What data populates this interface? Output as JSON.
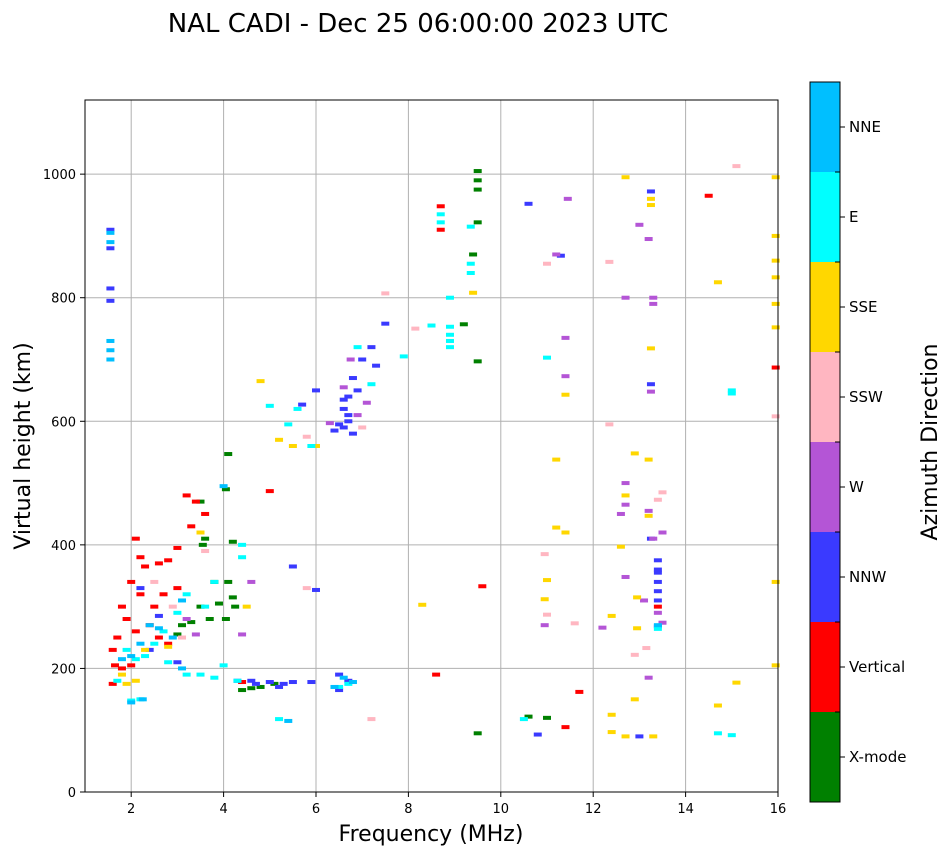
{
  "chart_data": {
    "type": "scatter",
    "title": "NAL CADI - Dec 25 06:00:00 2023 UTC",
    "xlabel": "Frequency (MHz)",
    "ylabel": "Virtual height (km)",
    "xlim": [
      1,
      16
    ],
    "ylim": [
      0,
      1120
    ],
    "xticks": [
      2,
      4,
      6,
      8,
      10,
      12,
      14,
      16
    ],
    "yticks": [
      0,
      200,
      400,
      600,
      800,
      1000
    ],
    "grid": true,
    "colorbar": {
      "title": "Azimuth Direction",
      "categories": [
        "X-mode",
        "Vertical",
        "NNW",
        "W",
        "SSW",
        "SSE",
        "E",
        "NNE"
      ],
      "colors": {
        "X-mode": "#008000",
        "Vertical": "#ff0000",
        "NNW": "#3a3aff",
        "W": "#b455d6",
        "SSW": "#ffb6c1",
        "SSE": "#ffd700",
        "E": "#00ffff",
        "NNE": "#00bfff"
      }
    },
    "series": [
      {
        "name": "X-mode",
        "points": [
          [
            9.5,
            1005
          ],
          [
            9.5,
            990
          ],
          [
            9.5,
            975
          ],
          [
            9.5,
            922
          ],
          [
            9.4,
            870
          ],
          [
            9.2,
            757
          ],
          [
            9.5,
            697
          ],
          [
            4.1,
            547
          ],
          [
            4.05,
            490
          ],
          [
            3.5,
            470
          ],
          [
            3.6,
            410
          ],
          [
            3.55,
            400
          ],
          [
            4.2,
            405
          ],
          [
            3.8,
            340
          ],
          [
            4.1,
            340
          ],
          [
            4.2,
            315
          ],
          [
            4.25,
            300
          ],
          [
            3.5,
            300
          ],
          [
            3.7,
            280
          ],
          [
            3.3,
            275
          ],
          [
            4.05,
            280
          ],
          [
            3.1,
            270
          ],
          [
            3.0,
            255
          ],
          [
            4.4,
            165
          ],
          [
            4.6,
            168
          ],
          [
            4.8,
            170
          ],
          [
            5.1,
            175
          ],
          [
            9.5,
            95
          ],
          [
            10.6,
            122
          ],
          [
            11.0,
            120
          ],
          [
            3.9,
            305
          ]
        ]
      },
      {
        "name": "Vertical",
        "points": [
          [
            8.7,
            948
          ],
          [
            8.7,
            910
          ],
          [
            14.5,
            965
          ],
          [
            15.95,
            687
          ],
          [
            13.4,
            300
          ],
          [
            9.6,
            333
          ],
          [
            8.6,
            190
          ],
          [
            11.7,
            162
          ],
          [
            11.4,
            105
          ],
          [
            2.1,
            410
          ],
          [
            2.2,
            380
          ],
          [
            2.3,
            365
          ],
          [
            2.6,
            370
          ],
          [
            2.8,
            375
          ],
          [
            3.0,
            395
          ],
          [
            3.2,
            480
          ],
          [
            3.4,
            470
          ],
          [
            2.0,
            340
          ],
          [
            2.2,
            320
          ],
          [
            2.5,
            300
          ],
          [
            2.7,
            320
          ],
          [
            3.0,
            330
          ],
          [
            1.8,
            300
          ],
          [
            1.9,
            280
          ],
          [
            2.1,
            260
          ],
          [
            2.4,
            270
          ],
          [
            2.6,
            250
          ],
          [
            2.8,
            240
          ],
          [
            1.7,
            250
          ],
          [
            1.6,
            230
          ],
          [
            1.65,
            205
          ],
          [
            1.8,
            200
          ],
          [
            2.0,
            205
          ],
          [
            3.6,
            450
          ],
          [
            3.3,
            430
          ],
          [
            1.6,
            175
          ],
          [
            5.0,
            487
          ],
          [
            4.4,
            178
          ]
        ]
      },
      {
        "name": "NNW",
        "points": [
          [
            1.55,
            910
          ],
          [
            1.55,
            880
          ],
          [
            1.55,
            815
          ],
          [
            1.55,
            795
          ],
          [
            10.6,
            952
          ],
          [
            11.3,
            868
          ],
          [
            13.25,
            972
          ],
          [
            13.25,
            660
          ],
          [
            13.25,
            410
          ],
          [
            13.4,
            375
          ],
          [
            13.4,
            355
          ],
          [
            13.4,
            340
          ],
          [
            13.4,
            325
          ],
          [
            13.4,
            310
          ],
          [
            13.4,
            268
          ],
          [
            13.0,
            90
          ],
          [
            10.8,
            93
          ],
          [
            6.6,
            635
          ],
          [
            6.6,
            620
          ],
          [
            6.7,
            600
          ],
          [
            6.6,
            590
          ],
          [
            6.7,
            610
          ],
          [
            6.8,
            580
          ],
          [
            6.9,
            650
          ],
          [
            7.0,
            700
          ],
          [
            7.2,
            720
          ],
          [
            7.3,
            690
          ],
          [
            7.5,
            758
          ],
          [
            6.0,
            650
          ],
          [
            5.7,
            627
          ],
          [
            6.5,
            595
          ],
          [
            6.4,
            585
          ],
          [
            6.8,
            670
          ],
          [
            6.7,
            640
          ],
          [
            4.3,
            180
          ],
          [
            4.6,
            180
          ],
          [
            5.0,
            178
          ],
          [
            5.3,
            175
          ],
          [
            5.5,
            178
          ],
          [
            5.9,
            178
          ],
          [
            6.5,
            190
          ],
          [
            6.7,
            180
          ],
          [
            6.5,
            165
          ],
          [
            4.7,
            175
          ],
          [
            5.2,
            170
          ],
          [
            2.6,
            285
          ],
          [
            2.2,
            330
          ],
          [
            3.0,
            210
          ],
          [
            5.5,
            365
          ],
          [
            6.0,
            327
          ],
          [
            2.4,
            230
          ],
          [
            13.4,
            360
          ]
        ]
      },
      {
        "name": "W",
        "points": [
          [
            11.2,
            870
          ],
          [
            12.7,
            800
          ],
          [
            13.3,
            800
          ],
          [
            13.3,
            790
          ],
          [
            13.0,
            918
          ],
          [
            13.2,
            895
          ],
          [
            11.45,
            960
          ],
          [
            11.4,
            735
          ],
          [
            11.4,
            673
          ],
          [
            13.25,
            648
          ],
          [
            12.7,
            500
          ],
          [
            12.7,
            465
          ],
          [
            12.6,
            450
          ],
          [
            13.2,
            455
          ],
          [
            13.5,
            420
          ],
          [
            13.3,
            410
          ],
          [
            12.7,
            348
          ],
          [
            13.4,
            290
          ],
          [
            13.5,
            274
          ],
          [
            12.2,
            266
          ],
          [
            13.2,
            185
          ],
          [
            13.1,
            310
          ],
          [
            10.95,
            270
          ],
          [
            6.9,
            610
          ],
          [
            7.1,
            630
          ],
          [
            6.6,
            655
          ],
          [
            6.3,
            597
          ],
          [
            4.6,
            340
          ],
          [
            4.4,
            255
          ],
          [
            3.2,
            280
          ],
          [
            3.4,
            255
          ],
          [
            6.75,
            700
          ]
        ]
      },
      {
        "name": "SSW",
        "points": [
          [
            15.1,
            1013
          ],
          [
            11.0,
            855
          ],
          [
            12.35,
            858
          ],
          [
            15.95,
            608
          ],
          [
            12.35,
            595
          ],
          [
            13.5,
            485
          ],
          [
            13.4,
            473
          ],
          [
            10.95,
            385
          ],
          [
            12.9,
            222
          ],
          [
            13.15,
            233
          ],
          [
            11.6,
            273
          ],
          [
            11.0,
            287
          ],
          [
            7.5,
            807
          ],
          [
            8.15,
            750
          ],
          [
            7.2,
            118
          ],
          [
            5.8,
            330
          ],
          [
            3.6,
            390
          ],
          [
            2.5,
            340
          ],
          [
            2.9,
            300
          ],
          [
            3.1,
            250
          ],
          [
            5.8,
            575
          ],
          [
            7.0,
            590
          ]
        ]
      },
      {
        "name": "SSE",
        "points": [
          [
            12.7,
            995
          ],
          [
            15.95,
            995
          ],
          [
            13.25,
            960
          ],
          [
            13.25,
            950
          ],
          [
            15.95,
            900
          ],
          [
            15.95,
            860
          ],
          [
            15.95,
            833
          ],
          [
            14.7,
            825
          ],
          [
            15.95,
            790
          ],
          [
            15.95,
            752
          ],
          [
            13.25,
            718
          ],
          [
            11.4,
            643
          ],
          [
            12.9,
            548
          ],
          [
            13.2,
            538
          ],
          [
            11.2,
            538
          ],
          [
            12.7,
            480
          ],
          [
            13.2,
            447
          ],
          [
            11.2,
            428
          ],
          [
            11.4,
            420
          ],
          [
            12.6,
            397
          ],
          [
            11.0,
            343
          ],
          [
            10.95,
            312
          ],
          [
            15.95,
            340
          ],
          [
            12.95,
            315
          ],
          [
            12.4,
            285
          ],
          [
            12.95,
            265
          ],
          [
            15.95,
            205
          ],
          [
            15.1,
            177
          ],
          [
            12.9,
            150
          ],
          [
            12.4,
            125
          ],
          [
            14.7,
            140
          ],
          [
            12.4,
            97
          ],
          [
            12.7,
            90
          ],
          [
            13.3,
            90
          ],
          [
            9.4,
            808
          ],
          [
            8.3,
            303
          ],
          [
            4.8,
            665
          ],
          [
            5.2,
            570
          ],
          [
            5.5,
            560
          ],
          [
            6.0,
            560
          ],
          [
            3.5,
            420
          ],
          [
            4.5,
            300
          ],
          [
            2.3,
            230
          ],
          [
            2.8,
            235
          ],
          [
            1.8,
            190
          ],
          [
            1.9,
            175
          ],
          [
            2.1,
            180
          ]
        ]
      },
      {
        "name": "E",
        "points": [
          [
            8.7,
            935
          ],
          [
            8.7,
            922
          ],
          [
            9.35,
            915
          ],
          [
            9.35,
            840
          ],
          [
            8.9,
            800
          ],
          [
            8.9,
            753
          ],
          [
            8.9,
            740
          ],
          [
            8.9,
            730
          ],
          [
            8.9,
            720
          ],
          [
            7.9,
            705
          ],
          [
            11.0,
            703
          ],
          [
            15.0,
            650
          ],
          [
            15.0,
            645
          ],
          [
            13.4,
            264
          ],
          [
            14.7,
            95
          ],
          [
            15.0,
            92
          ],
          [
            10.5,
            118
          ],
          [
            8.5,
            755
          ],
          [
            9.35,
            855
          ],
          [
            5.0,
            625
          ],
          [
            5.4,
            595
          ],
          [
            5.6,
            620
          ],
          [
            5.9,
            560
          ],
          [
            6.9,
            720
          ],
          [
            7.2,
            660
          ],
          [
            4.4,
            400
          ],
          [
            4.4,
            380
          ],
          [
            3.8,
            340
          ],
          [
            3.6,
            300
          ],
          [
            3.2,
            320
          ],
          [
            3.0,
            290
          ],
          [
            2.7,
            260
          ],
          [
            2.5,
            240
          ],
          [
            2.3,
            220
          ],
          [
            2.1,
            215
          ],
          [
            1.9,
            230
          ],
          [
            2.8,
            210
          ],
          [
            3.2,
            190
          ],
          [
            3.5,
            190
          ],
          [
            3.8,
            185
          ],
          [
            2.0,
            148
          ],
          [
            2.2,
            150
          ],
          [
            5.2,
            118
          ],
          [
            6.5,
            170
          ],
          [
            6.7,
            175
          ],
          [
            4.0,
            205
          ],
          [
            4.3,
            180
          ],
          [
            1.7,
            180
          ]
        ]
      },
      {
        "name": "NNE",
        "points": [
          [
            1.55,
            905
          ],
          [
            1.55,
            890
          ],
          [
            1.55,
            730
          ],
          [
            1.55,
            715
          ],
          [
            1.55,
            700
          ],
          [
            2.0,
            145
          ],
          [
            2.25,
            150
          ],
          [
            5.4,
            115
          ],
          [
            6.4,
            170
          ],
          [
            6.8,
            178
          ],
          [
            6.6,
            185
          ],
          [
            2.6,
            265
          ],
          [
            2.4,
            270
          ],
          [
            2.2,
            240
          ],
          [
            2.0,
            220
          ],
          [
            1.8,
            215
          ],
          [
            3.1,
            200
          ],
          [
            4.0,
            495
          ],
          [
            3.1,
            310
          ],
          [
            2.9,
            250
          ],
          [
            13.4,
            270
          ]
        ]
      }
    ]
  }
}
